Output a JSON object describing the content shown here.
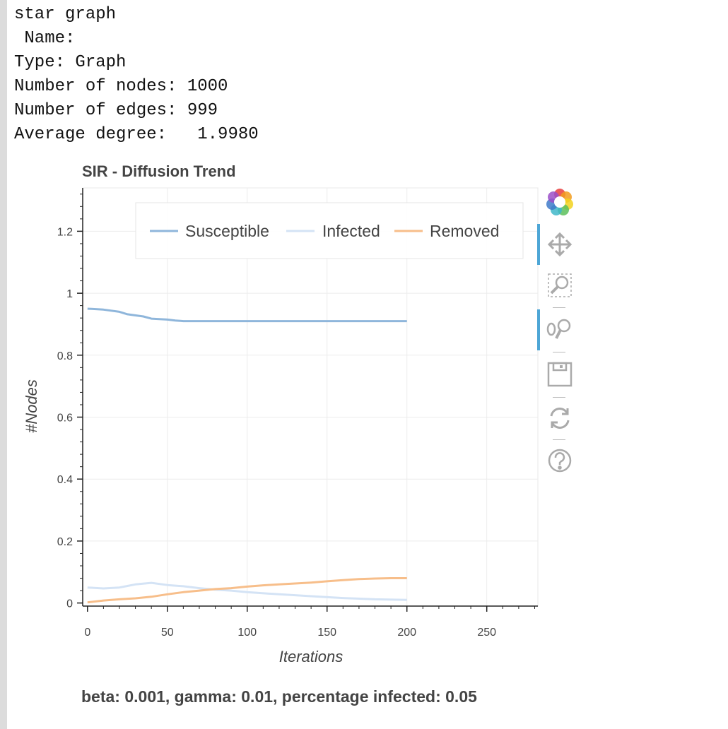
{
  "info": {
    "lines": [
      "star graph",
      " Name:",
      "Type: Graph",
      "Number of nodes: 1000",
      "Number of edges: 999",
      "Average degree:   1.9980"
    ]
  },
  "toolbar": {
    "tools": [
      "bokeh-logo-icon",
      "pan-icon",
      "box-zoom-icon",
      "wheel-zoom-icon",
      "save-icon",
      "reset-icon",
      "help-icon"
    ]
  },
  "note": "beta: 0.001, gamma: 0.01, percentage infected: 0.05",
  "chart_data": {
    "type": "line",
    "title": "SIR - Diffusion Trend",
    "xlabel": "Iterations",
    "ylabel": "#Nodes",
    "xlim": [
      -3,
      282
    ],
    "ylim": [
      -0.01,
      1.34
    ],
    "xticks": [
      0,
      50,
      100,
      150,
      200,
      250
    ],
    "yticks": [
      0,
      0.2,
      0.4,
      0.6,
      0.8,
      1,
      1.2
    ],
    "ytick_labels": [
      "0",
      "0.2",
      "0.4",
      "0.6",
      "0.8",
      "1",
      "1.2"
    ],
    "grid": true,
    "legend_position": "top",
    "series": [
      {
        "name": "Susceptible",
        "color": "#8fb6db",
        "x": [
          0,
          10,
          20,
          25,
          35,
          40,
          50,
          55,
          60,
          200
        ],
        "values": [
          0.95,
          0.947,
          0.94,
          0.932,
          0.925,
          0.918,
          0.915,
          0.912,
          0.91,
          0.91
        ]
      },
      {
        "name": "Infected",
        "color": "#d4e3f5",
        "x": [
          0,
          10,
          20,
          25,
          30,
          40,
          50,
          60,
          70,
          80,
          90,
          100,
          120,
          140,
          160,
          180,
          200
        ],
        "values": [
          0.05,
          0.047,
          0.05,
          0.055,
          0.06,
          0.065,
          0.058,
          0.054,
          0.048,
          0.043,
          0.04,
          0.035,
          0.028,
          0.022,
          0.016,
          0.012,
          0.01
        ]
      },
      {
        "name": "Removed",
        "color": "#f7be8a",
        "x": [
          0,
          10,
          20,
          30,
          40,
          50,
          60,
          70,
          80,
          90,
          100,
          110,
          120,
          130,
          140,
          150,
          160,
          170,
          180,
          190,
          200
        ],
        "values": [
          0.002,
          0.008,
          0.012,
          0.015,
          0.02,
          0.028,
          0.035,
          0.04,
          0.045,
          0.048,
          0.053,
          0.057,
          0.06,
          0.063,
          0.066,
          0.07,
          0.074,
          0.077,
          0.079,
          0.08,
          0.08
        ]
      }
    ]
  }
}
